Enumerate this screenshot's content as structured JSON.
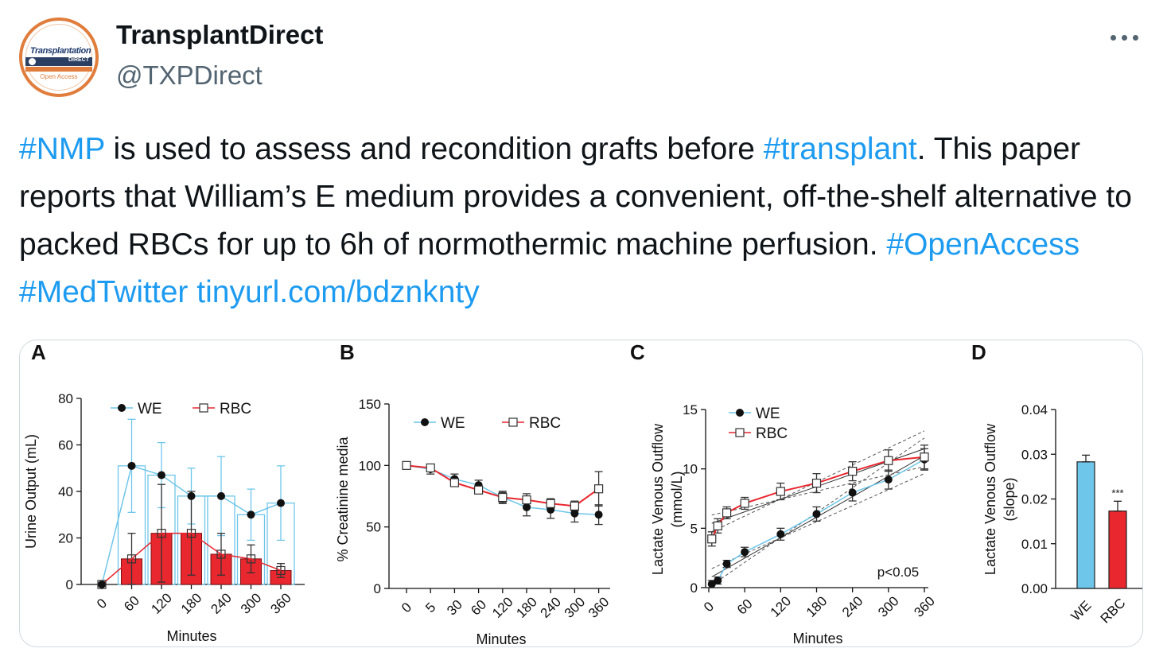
{
  "account": {
    "display_name": "TransplantDirect",
    "handle": "@TXPDirect",
    "avatar_text": [
      "Transplantation",
      "DIRECT",
      "Open Access"
    ]
  },
  "tweet": {
    "segments": [
      {
        "text": "#NMP",
        "type": "hashtag"
      },
      {
        "text": " is used to assess and recondition grafts before ",
        "type": "text"
      },
      {
        "text": "#transplant",
        "type": "hashtag"
      },
      {
        "text": ". This paper reports that William’s E medium provides a convenient, off-the-shelf alternative to packed RBCs for up to 6h of normothermic machine perfusion. ",
        "type": "text"
      },
      {
        "text": "#OpenAccess",
        "type": "hashtag"
      },
      {
        "text": " ",
        "type": "text"
      },
      {
        "text": "#MedTwitter",
        "type": "hashtag"
      },
      {
        "text": " ",
        "type": "text"
      },
      {
        "text": "tinyurl.com/bdznknty",
        "type": "link"
      }
    ]
  },
  "colors": {
    "link": "#1d9bf0",
    "we": "#6ec6ea",
    "rbc": "#e8272e",
    "text": "#0f1419",
    "muted": "#536471"
  },
  "chart_data": [
    {
      "panel": "A",
      "type": "bar",
      "ylabel": "Urine Output (mL)",
      "xlabel": "Minutes",
      "ylim": [
        0,
        80
      ],
      "yticks": [
        0,
        20,
        40,
        60,
        80
      ],
      "categories": [
        "0",
        "60",
        "120",
        "180",
        "240",
        "300",
        "360"
      ],
      "legend": [
        "WE",
        "RBC"
      ],
      "series": [
        {
          "name": "WE",
          "values": [
            0,
            51,
            47,
            38,
            38,
            30,
            35
          ],
          "err": [
            0,
            20,
            14,
            12,
            17,
            11,
            16
          ]
        },
        {
          "name": "RBC",
          "values": [
            0,
            11,
            22,
            22,
            13,
            11,
            6
          ],
          "err": [
            0,
            11,
            21,
            18,
            9,
            6,
            3
          ]
        }
      ]
    },
    {
      "panel": "B",
      "type": "line",
      "ylabel": "% Creatinine media",
      "xlabel": "Minutes",
      "ylim": [
        0,
        150
      ],
      "yticks": [
        0,
        50,
        100,
        150
      ],
      "categories": [
        "0",
        "5",
        "30",
        "60",
        "120",
        "180",
        "240",
        "300",
        "360"
      ],
      "legend": [
        "WE",
        "RBC"
      ],
      "series": [
        {
          "name": "WE",
          "values": [
            100,
            97,
            89,
            84,
            74,
            66,
            64,
            61,
            60
          ],
          "err": [
            3,
            4,
            4,
            4,
            5,
            7,
            7,
            7,
            8
          ]
        },
        {
          "name": "RBC",
          "values": [
            100,
            98,
            86,
            80,
            74,
            72,
            69,
            67,
            81
          ],
          "err": [
            2,
            3,
            3,
            3,
            4,
            5,
            4,
            4,
            14
          ]
        }
      ]
    },
    {
      "panel": "C",
      "type": "line",
      "ylabel": "Lactate Venous Outflow (mmol/L)",
      "xlabel": "Minutes",
      "ylim": [
        0,
        15
      ],
      "yticks": [
        0,
        5,
        10,
        15
      ],
      "xticks": [
        0,
        60,
        120,
        180,
        240,
        300,
        360
      ],
      "legend": [
        "WE",
        "RBC"
      ],
      "annotation": "p<0.05",
      "series": [
        {
          "name": "WE",
          "x": [
            5,
            15,
            30,
            60,
            120,
            180,
            240,
            300,
            360
          ],
          "values": [
            0.3,
            0.6,
            2.0,
            3.0,
            4.5,
            6.2,
            8.0,
            9.1,
            10.8
          ],
          "err": [
            0.3,
            0.3,
            0.3,
            0.4,
            0.5,
            0.6,
            0.7,
            0.8,
            0.9
          ]
        },
        {
          "name": "RBC",
          "x": [
            5,
            15,
            30,
            60,
            120,
            180,
            240,
            300,
            360
          ],
          "values": [
            4.1,
            5.2,
            6.3,
            7.1,
            8.1,
            8.8,
            9.8,
            10.7,
            11.0
          ],
          "err": [
            0.6,
            0.6,
            0.5,
            0.5,
            0.7,
            0.8,
            0.8,
            0.9,
            1.0
          ]
        }
      ]
    },
    {
      "panel": "D",
      "type": "bar",
      "ylabel": "Lactate Venous Outflow (slope)",
      "ylim": [
        0,
        0.04
      ],
      "yticks": [
        "0.00",
        "0.01",
        "0.02",
        "0.03",
        "0.04"
      ],
      "categories": [
        "WE",
        "RBC"
      ],
      "values": [
        0.0283,
        0.0173
      ],
      "err": [
        0.0015,
        0.0022
      ],
      "annotation": "***"
    }
  ]
}
